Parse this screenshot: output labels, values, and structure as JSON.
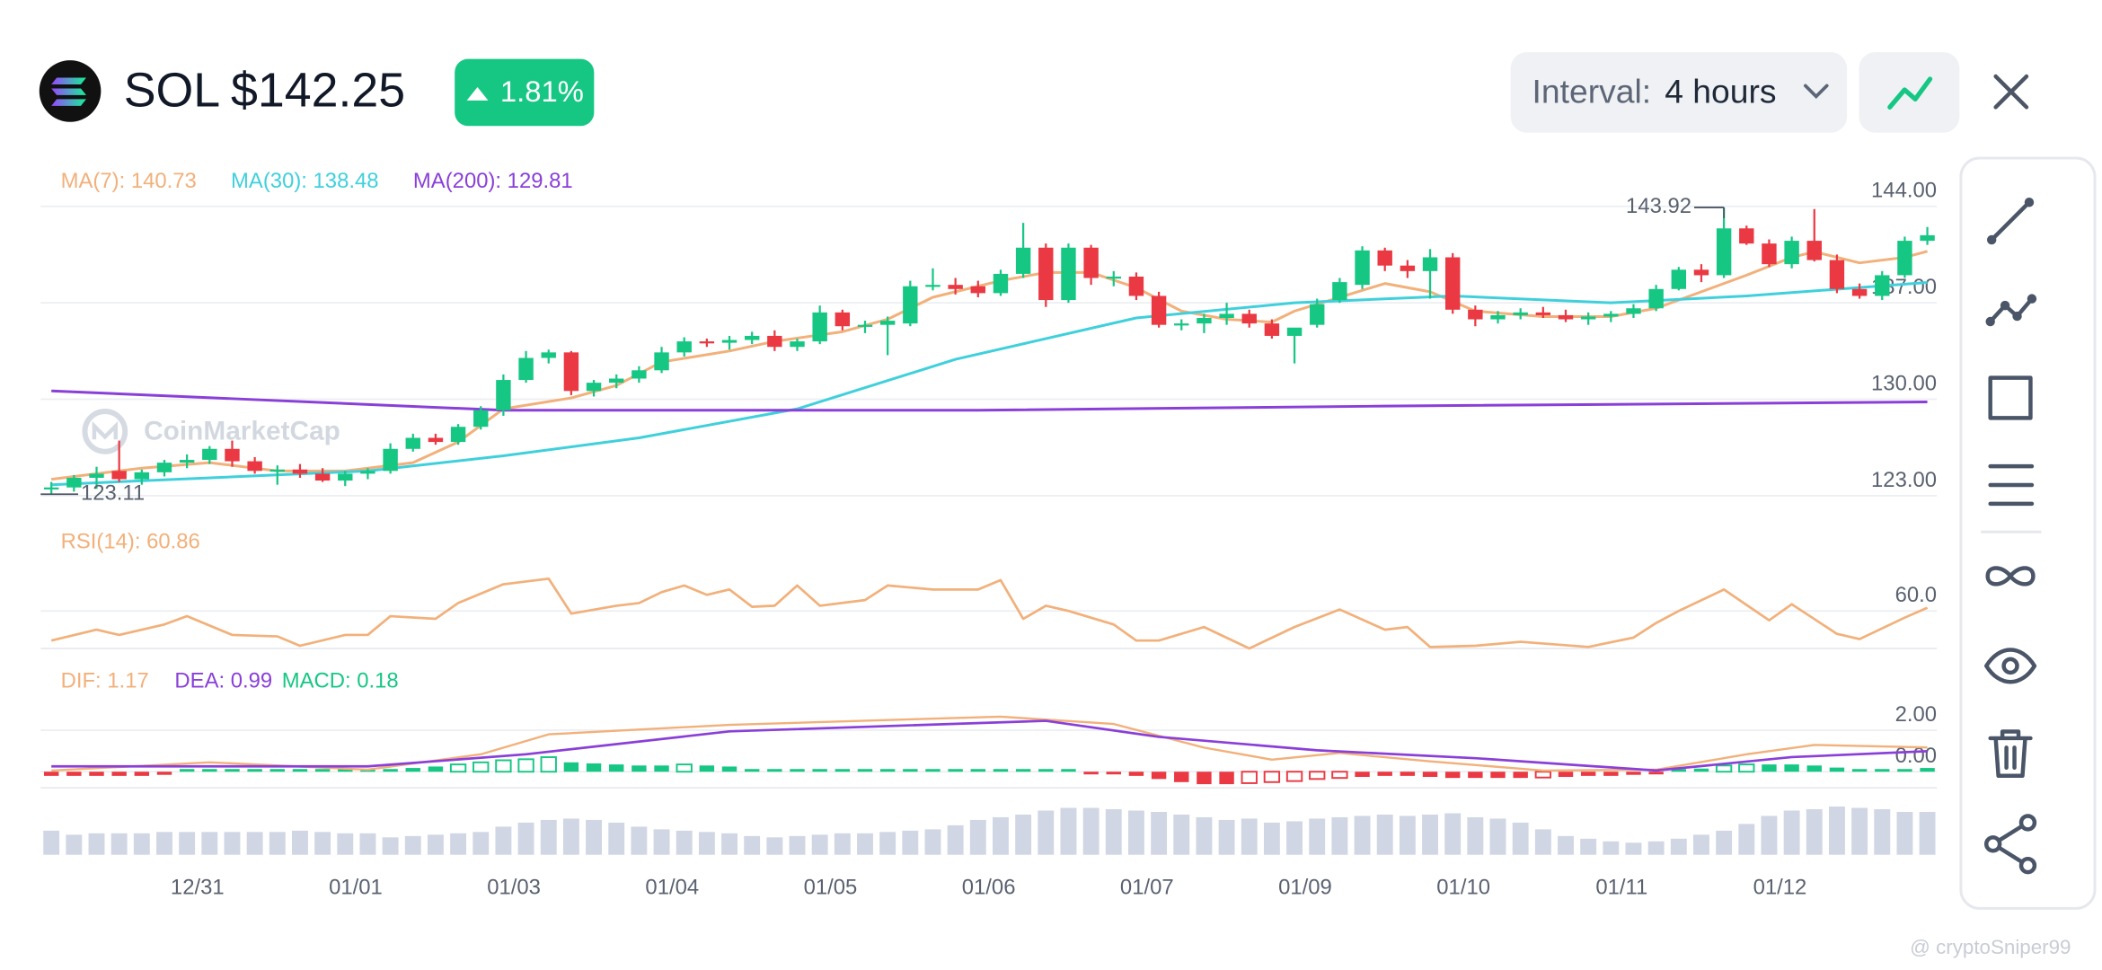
{
  "header": {
    "symbol": "SOL",
    "price": "$142.25",
    "change": "1.81%",
    "interval_label": "Interval:",
    "interval": "4 hours"
  },
  "price_panel": {
    "type": "candlestick",
    "ylim": [
      123,
      144
    ],
    "yticks": [
      {
        "value": 144,
        "label": "144.00"
      },
      {
        "value": 137,
        "label": "137.00"
      },
      {
        "value": 130,
        "label": "130.00"
      },
      {
        "value": 123,
        "label": "123.00"
      }
    ],
    "grid": true,
    "up_color": "#16c784",
    "down_color": "#ea3943",
    "candles": [
      [
        123.5,
        124,
        123.11,
        123.6
      ],
      [
        123.6,
        124.5,
        123.3,
        124.3
      ],
      [
        124.3,
        125.1,
        123.5,
        124.6
      ],
      [
        124.8,
        127,
        124,
        124.2
      ],
      [
        124.2,
        124.9,
        123.8,
        124.7
      ],
      [
        124.7,
        125.6,
        124.4,
        125.4
      ],
      [
        125.4,
        126,
        125,
        125.6
      ],
      [
        125.6,
        126.6,
        125.3,
        126.4
      ],
      [
        126.4,
        127,
        125.1,
        125.5
      ],
      [
        125.5,
        125.8,
        124.6,
        124.8
      ],
      [
        124.8,
        125.2,
        123.8,
        124.9
      ],
      [
        124.9,
        125.3,
        124.3,
        124.6
      ],
      [
        124.6,
        125,
        124,
        124.1
      ],
      [
        124.1,
        124.8,
        123.7,
        124.6
      ],
      [
        124.6,
        125,
        124.2,
        124.8
      ],
      [
        124.8,
        126.8,
        124.6,
        126.4
      ],
      [
        126.4,
        127.5,
        126.2,
        127.2
      ],
      [
        127.2,
        127.5,
        126.7,
        126.9
      ],
      [
        126.9,
        128.2,
        126.7,
        128
      ],
      [
        128,
        129.5,
        127.8,
        129.2
      ],
      [
        129.2,
        131.8,
        128.8,
        131.4
      ],
      [
        131.4,
        133.5,
        131.2,
        133
      ],
      [
        133,
        133.6,
        132.6,
        133.4
      ],
      [
        133.4,
        133.5,
        130.3,
        130.6
      ],
      [
        130.6,
        131.4,
        130.2,
        131.2
      ],
      [
        131.2,
        131.8,
        130.8,
        131.5
      ],
      [
        131.5,
        132.4,
        131.2,
        132.1
      ],
      [
        132.1,
        133.8,
        131.9,
        133.4
      ],
      [
        133.4,
        134.5,
        133.1,
        134.2
      ],
      [
        134.2,
        134.4,
        133.8,
        134.1
      ],
      [
        134.1,
        134.6,
        133.6,
        134.3
      ],
      [
        134.3,
        134.9,
        134,
        134.6
      ],
      [
        134.6,
        135,
        133.5,
        133.8
      ],
      [
        133.8,
        134.4,
        133.5,
        134.2
      ],
      [
        134.2,
        136.8,
        134,
        136.3
      ],
      [
        136.3,
        136.5,
        135,
        135.3
      ],
      [
        135.3,
        135.7,
        134.8,
        135.4
      ],
      [
        135.4,
        136,
        133.2,
        135.7
      ],
      [
        135.5,
        138.6,
        135.3,
        138.2
      ],
      [
        138.2,
        139.5,
        137.9,
        138.3
      ],
      [
        138.3,
        138.8,
        137.6,
        138
      ],
      [
        138.2,
        138.6,
        137.4,
        137.7
      ],
      [
        137.7,
        139.4,
        137.5,
        139.1
      ],
      [
        139.1,
        142.8,
        138.8,
        141
      ],
      [
        141,
        141.3,
        136.7,
        137.2
      ],
      [
        137.2,
        141.3,
        137,
        141
      ],
      [
        141,
        141.2,
        138.3,
        138.8
      ],
      [
        138.8,
        139.3,
        138.2,
        138.9
      ],
      [
        138.9,
        139.2,
        137.2,
        137.5
      ],
      [
        137.5,
        137.8,
        135.2,
        135.4
      ],
      [
        135.4,
        135.8,
        135,
        135.5
      ],
      [
        135.5,
        136.2,
        134.8,
        135.9
      ],
      [
        135.9,
        137,
        135.4,
        136.2
      ],
      [
        136.2,
        136.5,
        135.2,
        135.5
      ],
      [
        135.5,
        135.8,
        134.4,
        134.6
      ],
      [
        134.6,
        135.1,
        132.6,
        135.2
      ],
      [
        135.4,
        137.3,
        135.2,
        136.9
      ],
      [
        137.2,
        138.8,
        137,
        138.5
      ],
      [
        138.3,
        141.1,
        138,
        140.8
      ],
      [
        140.8,
        141,
        139.3,
        139.7
      ],
      [
        139.7,
        140.1,
        138.8,
        139.3
      ],
      [
        139.3,
        140.9,
        137.3,
        140.3
      ],
      [
        140.3,
        140.6,
        136.2,
        136.5
      ],
      [
        136.5,
        136.8,
        135.3,
        135.8
      ],
      [
        135.8,
        136.4,
        135.5,
        136.1
      ],
      [
        136.1,
        136.6,
        135.8,
        136.3
      ],
      [
        136.3,
        136.7,
        135.9,
        136.1
      ],
      [
        136.1,
        136.5,
        135.6,
        135.8
      ],
      [
        135.8,
        136.3,
        135.4,
        136
      ],
      [
        136,
        136.4,
        135.6,
        136.2
      ],
      [
        136.2,
        136.9,
        135.9,
        136.6
      ],
      [
        136.6,
        138.3,
        136.4,
        138
      ],
      [
        138,
        139.6,
        137.9,
        139.4
      ],
      [
        139.4,
        139.8,
        138.5,
        139
      ],
      [
        139,
        143.92,
        138.8,
        142.4
      ],
      [
        142.4,
        142.6,
        141.2,
        141.3
      ],
      [
        141.3,
        141.6,
        139.6,
        139.8
      ],
      [
        139.8,
        141.8,
        139.5,
        141.5
      ],
      [
        141.5,
        143.8,
        140,
        140.1
      ],
      [
        140.1,
        140.5,
        137.7,
        138
      ],
      [
        138,
        138.4,
        137.3,
        137.5
      ],
      [
        137.5,
        139.3,
        137.2,
        139
      ],
      [
        139,
        141.8,
        138.8,
        141.5
      ],
      [
        141.5,
        142.5,
        141.2,
        141.9
      ]
    ],
    "ma": [
      {
        "name": "MA(7): 140.73",
        "color": "#f2b07a",
        "x": [
          0,
          4,
          7,
          10,
          13,
          16,
          18,
          20,
          23,
          25,
          27,
          30,
          32,
          35,
          37,
          39,
          42,
          44,
          46,
          48,
          50,
          52,
          54,
          55,
          57,
          59,
          61,
          63,
          66,
          69,
          71,
          73,
          75,
          77,
          78,
          80,
          82,
          83
        ],
        "values": [
          124.2,
          125,
          125.4,
          124.8,
          124.8,
          125.4,
          126.9,
          129.3,
          130.1,
          131,
          132.7,
          133.5,
          134.2,
          134.9,
          135.8,
          137.4,
          138.6,
          139.2,
          139.2,
          138.1,
          136.4,
          135.8,
          135.6,
          136.4,
          137.4,
          138.4,
          137.8,
          136.4,
          136,
          136,
          136.6,
          137.8,
          139,
          140.3,
          140.7,
          139.9,
          140.3,
          140.73
        ]
      },
      {
        "name": "MA(30): 138.48",
        "color": "#3fd0dc",
        "x": [
          0,
          14,
          20,
          26,
          33,
          40,
          48,
          55,
          62,
          69,
          75,
          83
        ],
        "values": [
          123.8,
          124.8,
          125.9,
          127.2,
          129.3,
          132.9,
          135.9,
          137,
          137.5,
          137,
          137.5,
          138.48
        ]
      },
      {
        "name": "MA(200): 129.81",
        "color": "#8a3fd8",
        "x": [
          0,
          20,
          41,
          59,
          83
        ],
        "values": [
          130.6,
          129.2,
          129.2,
          129.5,
          129.81
        ]
      }
    ],
    "watermark": "CoinMarketCap"
  },
  "rsi_panel": {
    "type": "line",
    "name": "RSI(14): 60.86",
    "color": "#f2b07a",
    "ylim": [
      50,
      80
    ],
    "yticks": [
      {
        "value": 60,
        "label": "60.0"
      }
    ],
    "x": [
      0,
      2,
      3,
      5,
      6,
      8,
      10,
      11,
      13,
      14,
      15,
      17,
      18,
      20,
      22,
      23,
      25,
      26,
      27,
      28,
      29,
      30,
      31,
      32,
      33,
      34,
      36,
      37,
      39,
      41,
      42,
      43,
      44,
      45,
      47,
      48,
      49,
      51,
      53,
      55,
      57,
      59,
      60,
      61,
      63,
      65,
      68,
      70,
      71,
      72,
      74,
      76,
      77,
      79,
      80,
      82,
      83
    ],
    "values": [
      52.1,
      55,
      53.6,
      56.4,
      58.6,
      53.6,
      53.2,
      50.7,
      53.6,
      53.6,
      58.6,
      57.9,
      62.1,
      67.1,
      68.6,
      59.3,
      61.4,
      62.1,
      65,
      66.8,
      64.3,
      65.7,
      61.1,
      61.4,
      66.8,
      61.4,
      62.9,
      66.8,
      65.7,
      65.7,
      68.2,
      57.9,
      61.4,
      60,
      56.4,
      52.1,
      52.1,
      55.7,
      50,
      55.7,
      60.4,
      55,
      55.7,
      50.4,
      50.7,
      51.8,
      50.4,
      52.9,
      56.8,
      60,
      65.7,
      57.5,
      61.8,
      53.9,
      52.5,
      58.2,
      60.86
    ]
  },
  "macd_panel": {
    "type": "macd",
    "ylim": [
      -1,
      5
    ],
    "yticks": [
      {
        "value": 2,
        "label": "2.00"
      },
      {
        "value": 0,
        "label": "0.00"
      }
    ],
    "dif": {
      "name": "DIF: 1.17",
      "color": "#f2b07a",
      "x": [
        0,
        7,
        14,
        19,
        22,
        30,
        42,
        47,
        51,
        54,
        57,
        61,
        66,
        71,
        75,
        78,
        83
      ],
      "values": [
        0.06,
        0.45,
        0.1,
        0.84,
        1.8,
        2.26,
        2.65,
        2.3,
        1.16,
        0.58,
        0.9,
        0.5,
        0.06,
        0.1,
        0.84,
        1.29,
        1.17
      ]
    },
    "dea": {
      "name": "DEA: 0.99",
      "color": "#8a3fd8",
      "x": [
        0,
        14,
        21,
        30,
        44,
        49,
        56,
        63,
        71,
        77,
        83
      ],
      "values": [
        0.26,
        0.26,
        0.84,
        1.94,
        2.45,
        1.68,
        1.03,
        0.65,
        0.06,
        0.7,
        0.99
      ]
    },
    "histogram": {
      "name": "MACD: 0.18",
      "up_color": "#16c784",
      "down_color": "#ea3943",
      "values": [
        -0.2,
        -0.2,
        -0.2,
        -0.2,
        -0.2,
        -0.15,
        0.05,
        0.06,
        0.06,
        0.05,
        0.05,
        0.04,
        0.04,
        0.05,
        0.08,
        0.12,
        0.18,
        0.25,
        0.35,
        0.45,
        0.55,
        0.6,
        0.7,
        0.45,
        0.4,
        0.35,
        0.3,
        0.3,
        0.35,
        0.3,
        0.25,
        0.1,
        0.06,
        0.05,
        0.08,
        0.07,
        0.05,
        0.06,
        0.07,
        0.06,
        0.05,
        0.06,
        0.08,
        0.07,
        0.05,
        0.04,
        -0.06,
        -0.1,
        -0.2,
        -0.35,
        -0.5,
        -0.6,
        -0.6,
        -0.55,
        -0.5,
        -0.45,
        -0.35,
        -0.3,
        -0.25,
        -0.2,
        -0.2,
        -0.25,
        -0.3,
        -0.3,
        -0.3,
        -0.3,
        -0.28,
        -0.25,
        -0.2,
        -0.2,
        -0.15,
        -0.1,
        0.1,
        0.15,
        0.3,
        0.35,
        0.35,
        0.35,
        0.3,
        0.2,
        0.12,
        0.1,
        0.12,
        0.18
      ]
    }
  },
  "volume_panel": {
    "type": "bar",
    "color": "#d0d6e4",
    "ylim": [
      0,
      40
    ],
    "values": [
      18,
      15,
      16,
      16,
      16,
      17,
      17,
      17,
      17,
      17,
      17,
      18,
      17,
      16,
      16,
      13,
      14,
      15,
      16,
      17,
      21,
      24,
      26,
      27,
      26,
      24,
      21,
      19,
      18,
      17,
      16,
      14,
      13,
      14,
      15,
      16,
      16,
      17,
      18,
      19,
      22,
      26,
      28,
      30,
      33,
      35,
      35,
      34,
      33,
      32,
      30,
      28,
      26,
      27,
      24,
      25,
      27,
      28,
      29,
      30,
      29,
      30,
      31,
      28,
      27,
      24,
      19,
      14,
      12,
      10,
      9,
      10,
      12,
      15,
      18,
      23,
      29,
      33,
      34,
      36,
      35,
      34,
      32,
      32
    ]
  },
  "dates": [
    "12/31",
    "01/01",
    "01/03",
    "01/04",
    "01/05",
    "01/06",
    "01/07",
    "01/09",
    "01/10",
    "01/11",
    "01/12"
  ],
  "footer": "@ cryptoSniper99"
}
